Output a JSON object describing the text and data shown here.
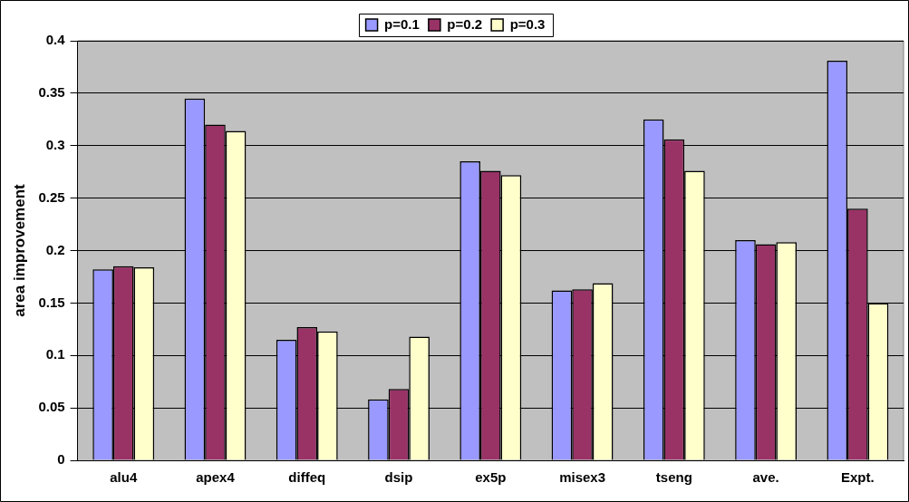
{
  "chart_data": {
    "type": "bar",
    "ylabel": "area improvement",
    "categories": [
      "alu4",
      "apex4",
      "diffeq",
      "dsip",
      "ex5p",
      "misex3",
      "tseng",
      "ave.",
      "Expt."
    ],
    "series": [
      {
        "name": "p=0.1",
        "color": "#9999ff",
        "values": [
          0.182,
          0.345,
          0.115,
          0.058,
          0.285,
          0.162,
          0.325,
          0.21,
          0.381
        ]
      },
      {
        "name": "p=0.2",
        "color": "#993366",
        "values": [
          0.185,
          0.32,
          0.127,
          0.068,
          0.276,
          0.163,
          0.306,
          0.206,
          0.24
        ]
      },
      {
        "name": "p=0.3",
        "color": "#ffffcc",
        "values": [
          0.184,
          0.314,
          0.123,
          0.118,
          0.272,
          0.169,
          0.276,
          0.208,
          0.15
        ]
      }
    ],
    "ylim": [
      0,
      0.4
    ],
    "yticks": [
      0,
      0.05,
      0.1,
      0.15,
      0.2,
      0.25,
      0.3,
      0.35,
      0.4
    ],
    "grid": "y",
    "legend": "top"
  }
}
